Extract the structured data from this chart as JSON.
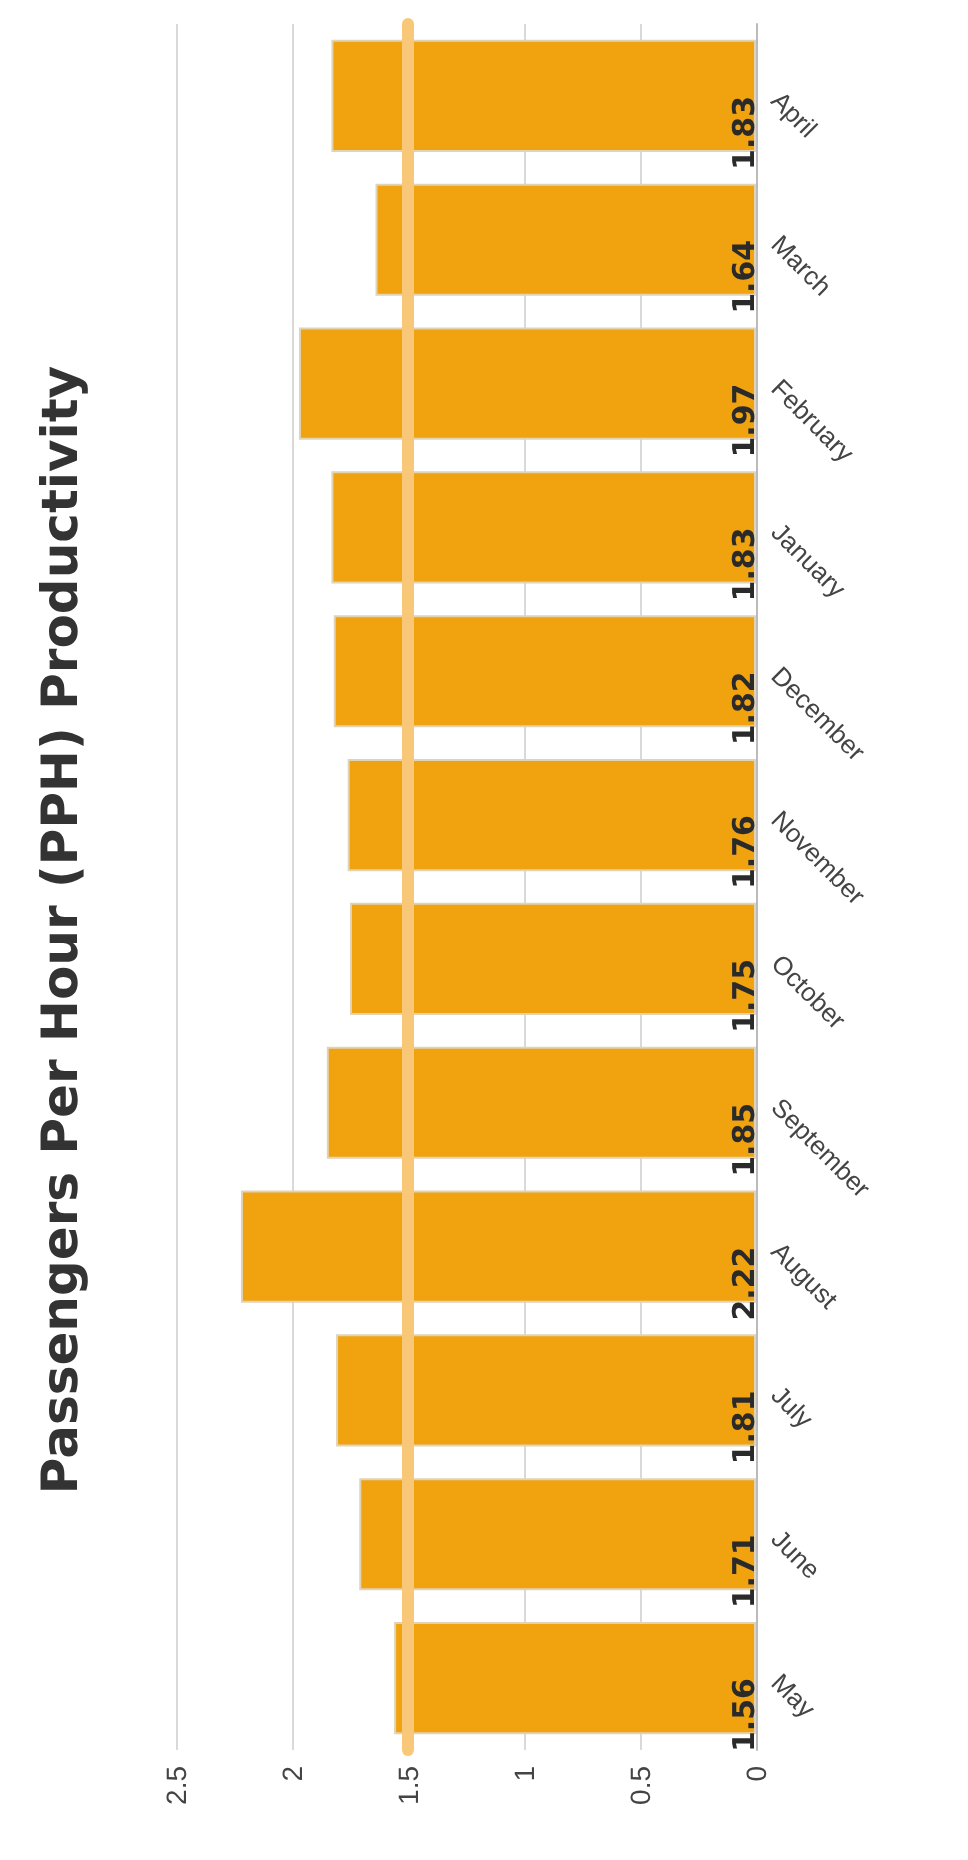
{
  "chart_data": {
    "type": "bar",
    "orientation": "horizontal",
    "title": "Passengers Per Hour (PPH) Productivity",
    "categories": [
      "April",
      "March",
      "February",
      "January",
      "December",
      "November",
      "October",
      "September",
      "August",
      "July",
      "June",
      "May"
    ],
    "values": [
      1.83,
      1.64,
      1.97,
      1.83,
      1.82,
      1.76,
      1.75,
      1.85,
      2.22,
      1.81,
      1.71,
      1.56
    ],
    "color": "#f0a30e",
    "xlim": [
      2.5,
      0
    ],
    "xticks": [
      2.5,
      2,
      1.5,
      1,
      0.5,
      0
    ],
    "grid": "x",
    "data_labels": true,
    "ref_lines": [
      {
        "axis": "x",
        "value": 1.5,
        "color": "#f8c878"
      }
    ]
  }
}
